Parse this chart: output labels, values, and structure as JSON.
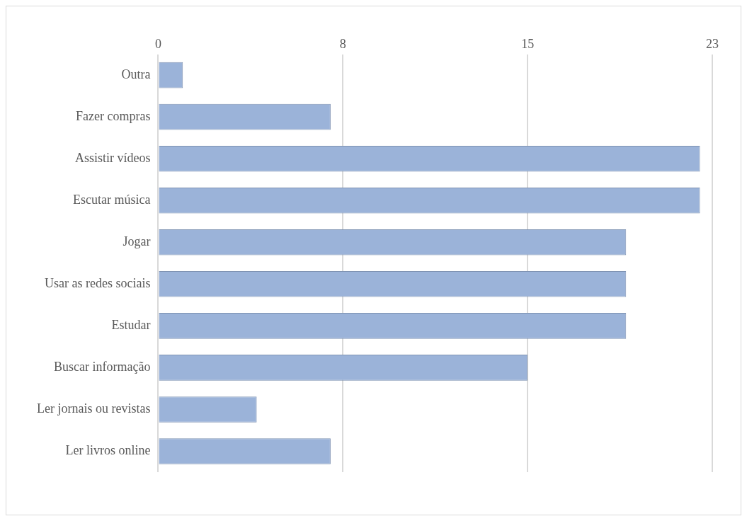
{
  "chart_data": {
    "type": "bar",
    "orientation": "horizontal",
    "categories": [
      "Outra",
      "Fazer compras",
      "Assistir vídeos",
      "Escutar música",
      "Jogar",
      "Usar as redes sociais",
      "Estudar",
      "Buscar informação",
      "Ler jornais ou revistas",
      "Ler livros online"
    ],
    "values": [
      1,
      7,
      22,
      22,
      19,
      19,
      19,
      15,
      4,
      7
    ],
    "color": "#9bb3d9",
    "xlim": [
      0,
      22.5
    ],
    "xticks": [
      0,
      {
        "value": 7.5,
        "label": "8"
      },
      15,
      {
        "value": 22.5,
        "label": "23"
      }
    ],
    "grid": "x",
    "legend": false
  }
}
